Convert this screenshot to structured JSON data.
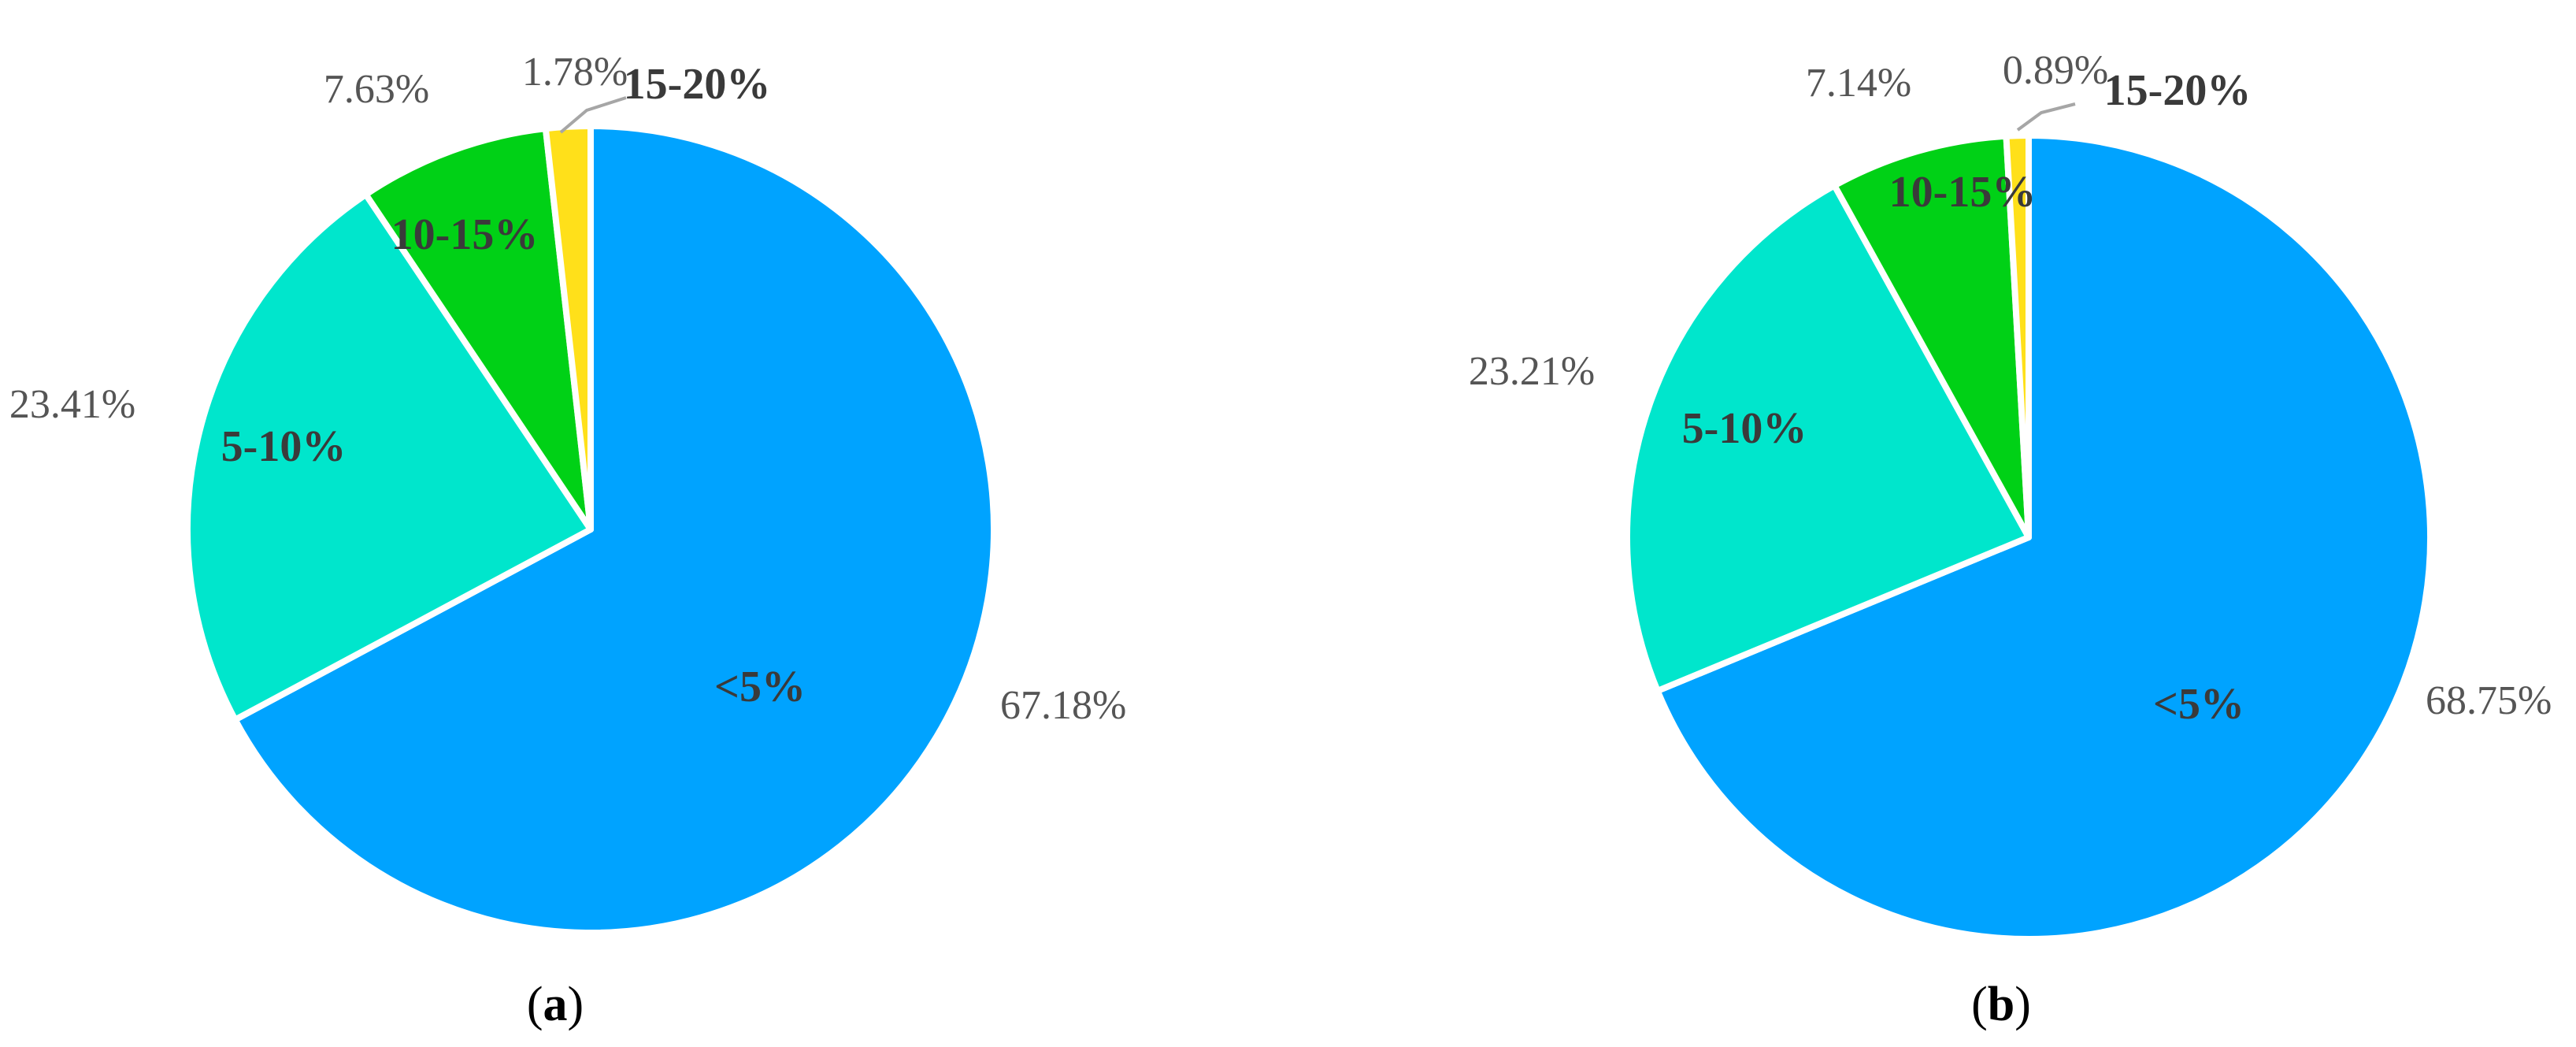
{
  "colors": {
    "lt5": "#00a3ff",
    "5to10": "#00e6cc",
    "10to15": "#00d116",
    "15to20": "#ffe01a"
  },
  "chart_data": [
    {
      "type": "pie",
      "caption": "(a)",
      "caption_letter": "a",
      "slices": [
        {
          "category": "<5%",
          "value": 67.18,
          "value_label": "67.18%",
          "color": "#00a3ff"
        },
        {
          "category": "5-10%",
          "value": 23.41,
          "value_label": "23.41%",
          "color": "#00e6cc"
        },
        {
          "category": "10-15%",
          "value": 7.63,
          "value_label": "7.63%",
          "color": "#00d116"
        },
        {
          "category": "15-20%",
          "value": 1.78,
          "value_label": "1.78%",
          "color": "#ffe01a"
        }
      ]
    },
    {
      "type": "pie",
      "caption": "(b)",
      "caption_letter": "b",
      "slices": [
        {
          "category": "<5%",
          "value": 68.75,
          "value_label": "68.75%",
          "color": "#00a3ff"
        },
        {
          "category": "5-10%",
          "value": 23.21,
          "value_label": "23.21%",
          "color": "#00e6cc"
        },
        {
          "category": "10-15%",
          "value": 7.14,
          "value_label": "7.14%",
          "color": "#00d116"
        },
        {
          "category": "15-20%",
          "value": 0.89,
          "value_label": "0.89%",
          "color": "#ffe01a"
        }
      ]
    }
  ]
}
